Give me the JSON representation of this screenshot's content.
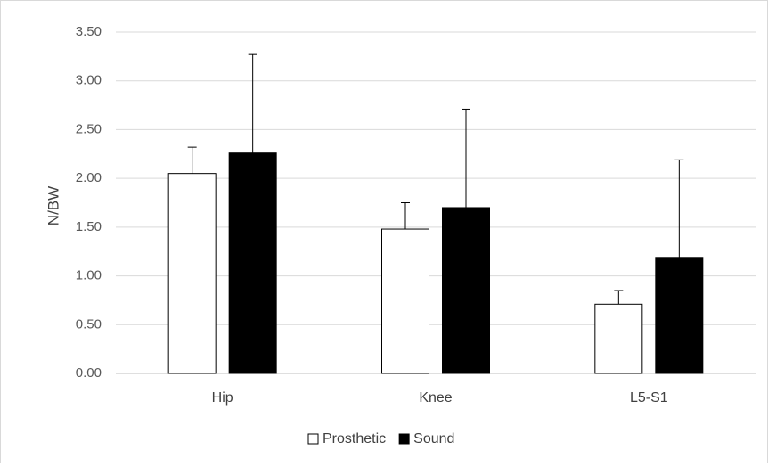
{
  "chart_data": {
    "type": "bar",
    "title": "",
    "xlabel": "",
    "ylabel": "N/BW",
    "ylim": [
      0,
      3.5
    ],
    "yticks": [
      "0.00",
      "0.50",
      "1.00",
      "1.50",
      "2.00",
      "2.50",
      "3.00",
      "3.50"
    ],
    "grid": true,
    "legend_position": "bottom",
    "categories": [
      "Hip",
      "Knee",
      "L5-S1"
    ],
    "series": [
      {
        "name": "Prosthetic",
        "values": [
          2.05,
          1.48,
          0.71
        ],
        "error": [
          0.27,
          0.27,
          0.14
        ],
        "color": "#ffffff",
        "stroke": "#000000"
      },
      {
        "name": "Sound",
        "values": [
          2.26,
          1.7,
          1.19
        ],
        "error": [
          1.01,
          1.01,
          1.0
        ],
        "color": "#000000",
        "stroke": "#000000"
      }
    ]
  }
}
